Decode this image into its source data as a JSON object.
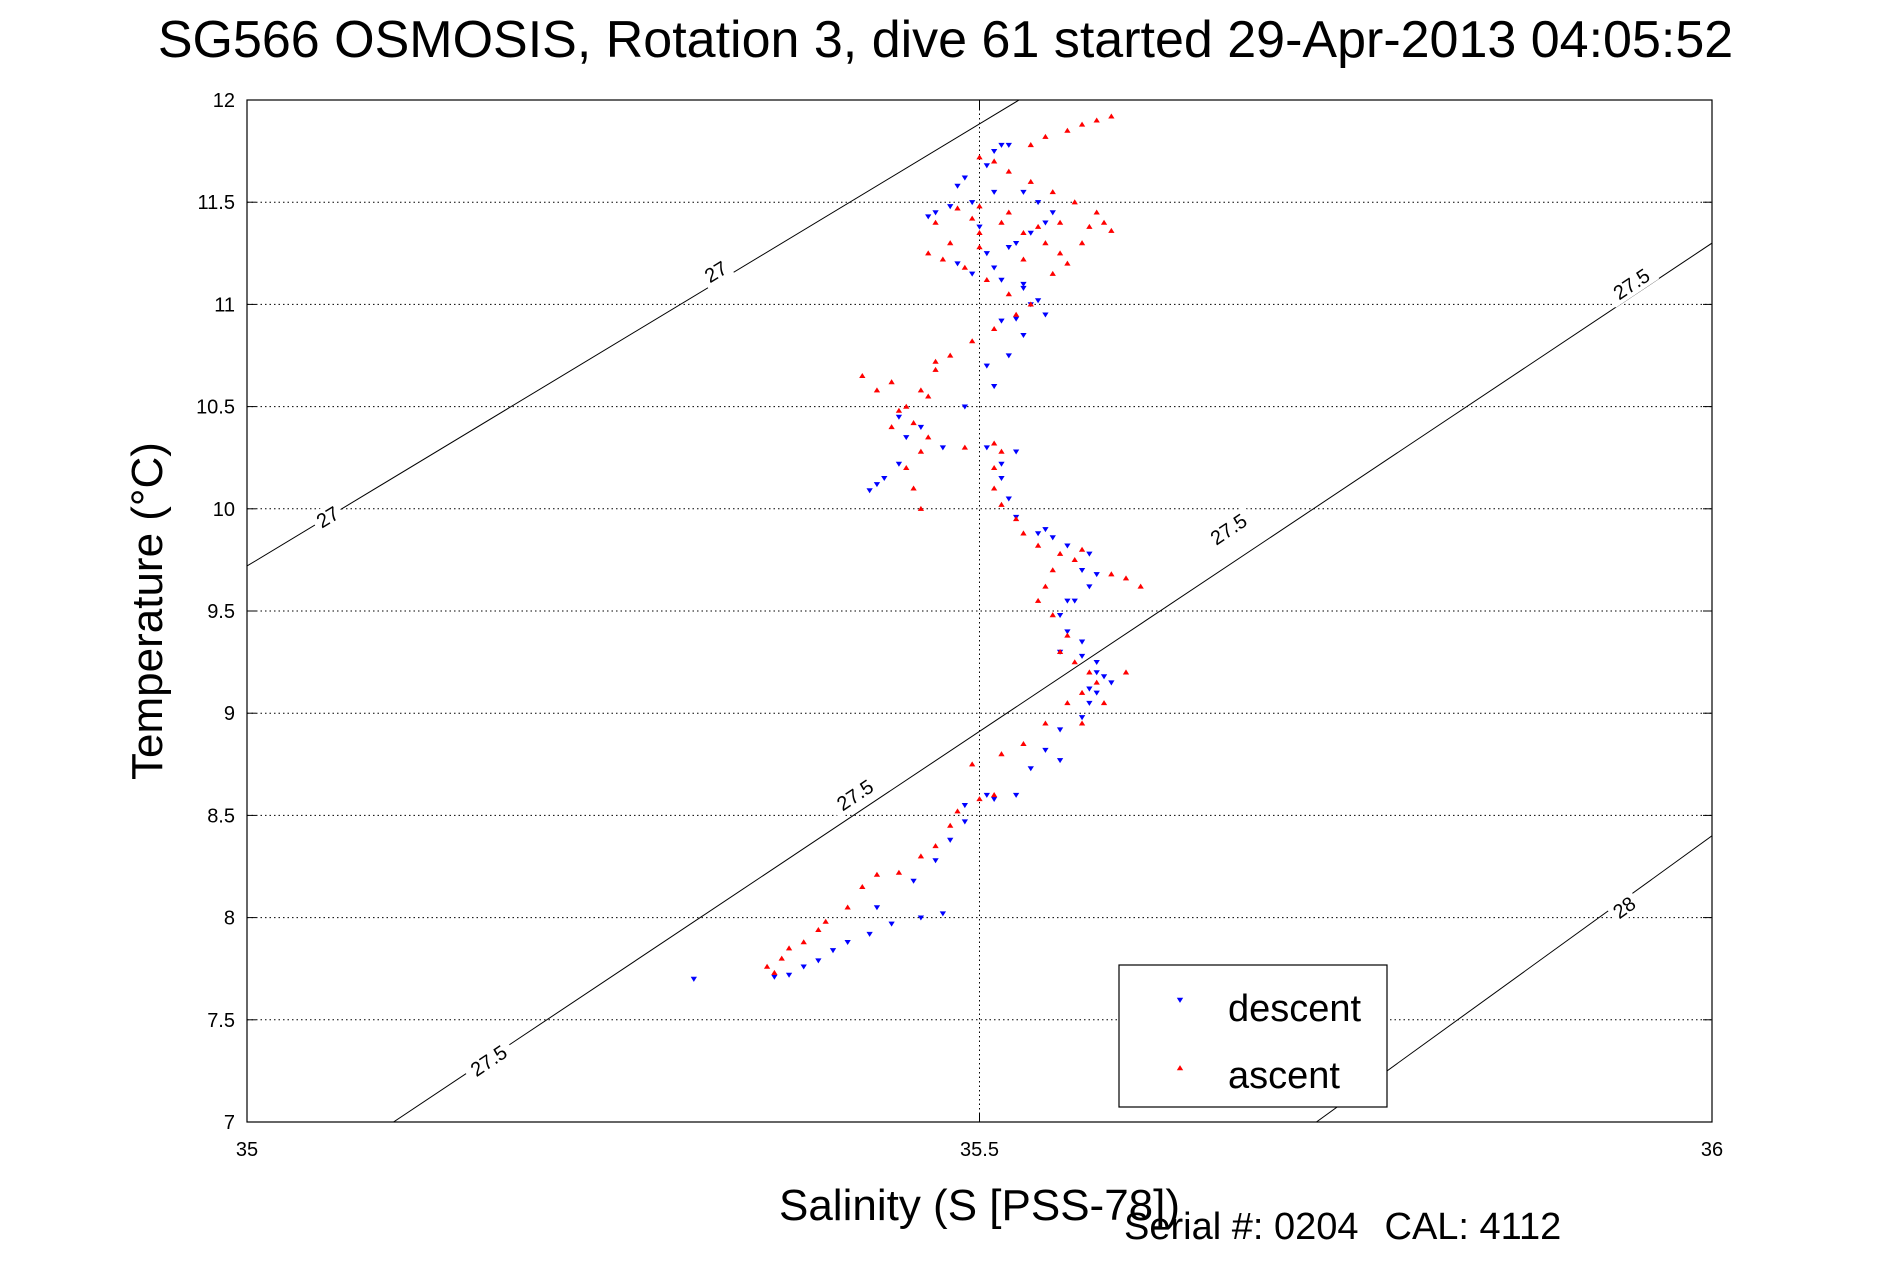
{
  "title": "SG566 OSMOSIS, Rotation 3, dive 61 started 29-Apr-2013 04:05:52",
  "footer": {
    "serial": "Serial #: 0204",
    "cal": "CAL: 4112"
  },
  "colors": {
    "descent": "#0000ff",
    "ascent": "#ff0000",
    "axes": "#000000",
    "grid": "#000000"
  },
  "chart_data": {
    "type": "scatter",
    "xlabel": "Salinity (S [PSS-78])",
    "ylabel": "Temperature (°C)",
    "xlim": [
      35,
      36
    ],
    "ylim": [
      7,
      12
    ],
    "xticks": [
      "35",
      "35.5",
      "36"
    ],
    "yticks": [
      "7",
      "7.5",
      "8",
      "8.5",
      "9",
      "9.5",
      "10",
      "10.5",
      "11",
      "11.5",
      "12"
    ],
    "grid": true,
    "legend_position": "bottom-right",
    "density_contours": [
      {
        "label": "27",
        "points": [
          [
            35.0,
            9.72
          ],
          [
            35.527,
            12.0
          ]
        ],
        "label_positions": [
          [
            35.055,
            9.96
          ],
          [
            35.32,
            11.16
          ]
        ]
      },
      {
        "label": "27.5",
        "points": [
          [
            35.1,
            7.0
          ],
          [
            36.0,
            11.3
          ]
        ],
        "label_positions": [
          [
            35.165,
            7.3
          ],
          [
            35.415,
            8.6
          ],
          [
            35.67,
            9.9
          ],
          [
            35.945,
            11.1
          ]
        ]
      },
      {
        "label": "28",
        "points": [
          [
            35.73,
            7.0
          ],
          [
            36.0,
            8.4
          ]
        ],
        "label_positions": [
          [
            35.94,
            8.05
          ]
        ]
      }
    ],
    "series": [
      {
        "name": "descent",
        "marker": "triangle-down",
        "points": [
          [
            35.305,
            7.7
          ],
          [
            35.36,
            7.71
          ],
          [
            35.37,
            7.72
          ],
          [
            35.38,
            7.76
          ],
          [
            35.39,
            7.79
          ],
          [
            35.4,
            7.84
          ],
          [
            35.41,
            7.88
          ],
          [
            35.425,
            7.92
          ],
          [
            35.44,
            7.97
          ],
          [
            35.46,
            8.0
          ],
          [
            35.475,
            8.02
          ],
          [
            35.455,
            8.18
          ],
          [
            35.47,
            8.28
          ],
          [
            35.48,
            8.38
          ],
          [
            35.49,
            8.47
          ],
          [
            35.49,
            8.55
          ],
          [
            35.505,
            8.6
          ],
          [
            35.51,
            8.58
          ],
          [
            35.525,
            8.6
          ],
          [
            35.535,
            8.73
          ],
          [
            35.545,
            8.82
          ],
          [
            35.555,
            8.92
          ],
          [
            35.57,
            8.98
          ],
          [
            35.575,
            9.05
          ],
          [
            35.58,
            9.1
          ],
          [
            35.59,
            9.15
          ],
          [
            35.58,
            9.2
          ],
          [
            35.57,
            9.28
          ],
          [
            35.555,
            9.3
          ],
          [
            35.56,
            9.4
          ],
          [
            35.555,
            9.48
          ],
          [
            35.56,
            9.55
          ],
          [
            35.575,
            9.62
          ],
          [
            35.57,
            9.7
          ],
          [
            35.58,
            9.68
          ],
          [
            35.575,
            9.78
          ],
          [
            35.56,
            9.82
          ],
          [
            35.545,
            9.9
          ],
          [
            35.525,
            9.96
          ],
          [
            35.52,
            10.05
          ],
          [
            35.515,
            10.15
          ],
          [
            35.515,
            10.22
          ],
          [
            35.525,
            10.28
          ],
          [
            35.505,
            10.3
          ],
          [
            35.475,
            10.3
          ],
          [
            35.46,
            10.4
          ],
          [
            35.445,
            10.45
          ],
          [
            35.445,
            10.22
          ],
          [
            35.435,
            10.15
          ],
          [
            35.43,
            10.12
          ],
          [
            35.425,
            10.09
          ],
          [
            35.45,
            10.35
          ],
          [
            35.51,
            10.6
          ],
          [
            35.52,
            10.75
          ],
          [
            35.53,
            10.85
          ],
          [
            35.525,
            10.93
          ],
          [
            35.535,
            11.0
          ],
          [
            35.53,
            11.08
          ],
          [
            35.515,
            11.12
          ],
          [
            35.495,
            11.15
          ],
          [
            35.485,
            11.2
          ],
          [
            35.505,
            11.25
          ],
          [
            35.525,
            11.3
          ],
          [
            35.535,
            11.35
          ],
          [
            35.545,
            11.4
          ],
          [
            35.55,
            11.45
          ],
          [
            35.54,
            11.5
          ],
          [
            35.53,
            11.55
          ],
          [
            35.51,
            11.55
          ],
          [
            35.495,
            11.5
          ],
          [
            35.48,
            11.48
          ],
          [
            35.47,
            11.45
          ],
          [
            35.465,
            11.43
          ],
          [
            35.485,
            11.58
          ],
          [
            35.49,
            11.62
          ],
          [
            35.505,
            11.68
          ],
          [
            35.51,
            11.75
          ],
          [
            35.515,
            11.78
          ],
          [
            35.52,
            11.78
          ],
          [
            35.53,
            11.1
          ],
          [
            35.54,
            11.02
          ],
          [
            35.51,
            11.18
          ],
          [
            35.52,
            11.28
          ],
          [
            35.5,
            11.38
          ],
          [
            35.545,
            10.95
          ],
          [
            35.515,
            10.92
          ],
          [
            35.505,
            10.7
          ],
          [
            35.49,
            10.5
          ],
          [
            35.54,
            9.88
          ],
          [
            35.55,
            9.86
          ],
          [
            35.565,
            9.55
          ],
          [
            35.57,
            9.35
          ],
          [
            35.58,
            9.25
          ],
          [
            35.585,
            9.18
          ],
          [
            35.575,
            9.12
          ],
          [
            35.555,
            8.77
          ],
          [
            35.43,
            8.05
          ]
        ]
      },
      {
        "name": "ascent",
        "marker": "triangle-up",
        "points": [
          [
            35.36,
            7.73
          ],
          [
            35.355,
            7.76
          ],
          [
            35.365,
            7.8
          ],
          [
            35.37,
            7.85
          ],
          [
            35.38,
            7.88
          ],
          [
            35.39,
            7.94
          ],
          [
            35.395,
            7.98
          ],
          [
            35.41,
            8.05
          ],
          [
            35.42,
            8.15
          ],
          [
            35.43,
            8.21
          ],
          [
            35.445,
            8.22
          ],
          [
            35.46,
            8.3
          ],
          [
            35.47,
            8.35
          ],
          [
            35.48,
            8.45
          ],
          [
            35.485,
            8.52
          ],
          [
            35.5,
            8.58
          ],
          [
            35.51,
            8.6
          ],
          [
            35.495,
            8.75
          ],
          [
            35.515,
            8.8
          ],
          [
            35.53,
            8.85
          ],
          [
            35.545,
            8.95
          ],
          [
            35.56,
            9.05
          ],
          [
            35.57,
            9.1
          ],
          [
            35.58,
            9.15
          ],
          [
            35.575,
            9.2
          ],
          [
            35.565,
            9.25
          ],
          [
            35.555,
            9.3
          ],
          [
            35.56,
            9.38
          ],
          [
            35.55,
            9.48
          ],
          [
            35.54,
            9.55
          ],
          [
            35.545,
            9.62
          ],
          [
            35.55,
            9.7
          ],
          [
            35.565,
            9.75
          ],
          [
            35.57,
            9.8
          ],
          [
            35.555,
            9.78
          ],
          [
            35.54,
            9.82
          ],
          [
            35.53,
            9.88
          ],
          [
            35.525,
            9.95
          ],
          [
            35.515,
            10.02
          ],
          [
            35.51,
            10.1
          ],
          [
            35.51,
            10.2
          ],
          [
            35.515,
            10.28
          ],
          [
            35.51,
            10.32
          ],
          [
            35.6,
            9.66
          ],
          [
            35.61,
            9.62
          ],
          [
            35.59,
            9.68
          ],
          [
            35.6,
            9.2
          ],
          [
            35.585,
            9.05
          ],
          [
            35.57,
            8.95
          ],
          [
            35.46,
            10.0
          ],
          [
            35.455,
            10.1
          ],
          [
            35.45,
            10.2
          ],
          [
            35.46,
            10.28
          ],
          [
            35.465,
            10.35
          ],
          [
            35.455,
            10.42
          ],
          [
            35.45,
            10.5
          ],
          [
            35.445,
            10.48
          ],
          [
            35.43,
            10.58
          ],
          [
            35.42,
            10.65
          ],
          [
            35.44,
            10.62
          ],
          [
            35.46,
            10.58
          ],
          [
            35.47,
            10.68
          ],
          [
            35.48,
            10.75
          ],
          [
            35.495,
            10.82
          ],
          [
            35.51,
            10.88
          ],
          [
            35.525,
            10.95
          ],
          [
            35.535,
            11.0
          ],
          [
            35.52,
            11.05
          ],
          [
            35.505,
            11.12
          ],
          [
            35.49,
            11.18
          ],
          [
            35.475,
            11.22
          ],
          [
            35.465,
            11.25
          ],
          [
            35.48,
            11.3
          ],
          [
            35.5,
            11.35
          ],
          [
            35.515,
            11.4
          ],
          [
            35.53,
            11.35
          ],
          [
            35.545,
            11.3
          ],
          [
            35.555,
            11.25
          ],
          [
            35.56,
            11.2
          ],
          [
            35.57,
            11.3
          ],
          [
            35.575,
            11.38
          ],
          [
            35.585,
            11.4
          ],
          [
            35.59,
            11.36
          ],
          [
            35.58,
            11.45
          ],
          [
            35.565,
            11.5
          ],
          [
            35.55,
            11.55
          ],
          [
            35.535,
            11.6
          ],
          [
            35.52,
            11.65
          ],
          [
            35.51,
            11.7
          ],
          [
            35.5,
            11.72
          ],
          [
            35.535,
            11.78
          ],
          [
            35.545,
            11.82
          ],
          [
            35.56,
            11.85
          ],
          [
            35.57,
            11.88
          ],
          [
            35.58,
            11.9
          ],
          [
            35.59,
            11.92
          ],
          [
            35.495,
            11.42
          ],
          [
            35.485,
            11.47
          ],
          [
            35.47,
            11.4
          ],
          [
            35.5,
            11.28
          ],
          [
            35.53,
            11.22
          ],
          [
            35.55,
            11.15
          ],
          [
            35.465,
            10.55
          ],
          [
            35.44,
            10.4
          ],
          [
            35.49,
            10.3
          ],
          [
            35.47,
            10.72
          ],
          [
            35.5,
            11.48
          ],
          [
            35.52,
            11.45
          ],
          [
            35.54,
            11.38
          ],
          [
            35.555,
            11.4
          ]
        ]
      }
    ]
  }
}
